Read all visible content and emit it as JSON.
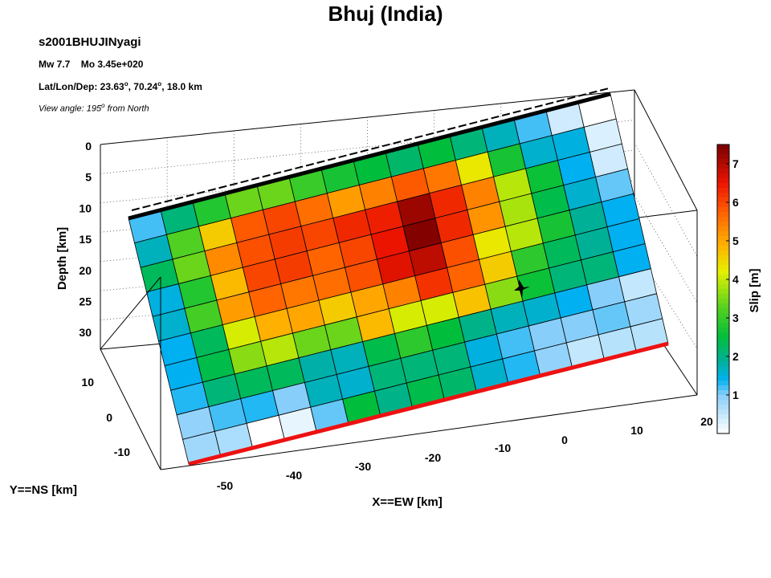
{
  "title": "Bhuj (India)",
  "event_id": "s2001BHUJINyagi",
  "mw_label": "Mw 7.7",
  "mo_label": "Mo 3.45e+020",
  "location": {
    "prefix": "Lat/Lon/Dep: ",
    "lat": "23.63",
    "lon": "70.24",
    "dep": "18.0 km",
    "deg": "o"
  },
  "view": {
    "prefix": "View angle: 195",
    "deg": "o",
    "suffix": " from North"
  },
  "chart_data": {
    "type": "heatmap",
    "title": "Bhuj (India)",
    "description_axes": {
      "depth_label": "Depth [km]",
      "x_label": "X==EW [km]",
      "y_label": "Y==NS [km]",
      "colorbar_label": "Slip [m]"
    },
    "depth_ticks": [
      "0",
      "5",
      "10",
      "15",
      "20",
      "25",
      "30"
    ],
    "x_ticks": [
      "-50",
      "-40",
      "-30",
      "-20",
      "-10",
      "0",
      "10",
      "20"
    ],
    "y_ticks": [
      "10",
      "0",
      "-10"
    ],
    "colorbar_ticks": [
      "1",
      "2",
      "3",
      "4",
      "5",
      "6",
      "7"
    ],
    "colorbar_range": [
      0,
      7.5
    ],
    "grid": true,
    "slip_m": [
      [
        1.2,
        2.1,
        2.8,
        3.4,
        3.4,
        3.0,
        2.7,
        2.5,
        2.2,
        2.5,
        2.1,
        1.7,
        1.2,
        0.4,
        0.0
      ],
      [
        1.7,
        3.2,
        4.6,
        5.8,
        6.0,
        5.6,
        5.1,
        5.4,
        5.8,
        5.5,
        4.3,
        2.7,
        1.6,
        1.5,
        0.3
      ],
      [
        2.3,
        3.4,
        5.3,
        5.9,
        6.1,
        6.0,
        6.3,
        6.4,
        7.2,
        6.3,
        5.4,
        3.9,
        2.6,
        1.4,
        0.4
      ],
      [
        1.5,
        2.8,
        4.8,
        6.0,
        6.1,
        5.7,
        6.0,
        6.5,
        7.4,
        6.3,
        5.2,
        3.8,
        2.4,
        1.6,
        1.1
      ],
      [
        1.6,
        3.1,
        5.1,
        5.7,
        5.5,
        5.6,
        5.9,
        6.6,
        6.9,
        5.9,
        4.3,
        3.9,
        2.7,
        1.9,
        1.4
      ],
      [
        1.4,
        2.3,
        4.1,
        4.9,
        5.0,
        4.6,
        5.0,
        5.4,
        6.2,
        5.7,
        4.6,
        2.9,
        2.3,
        1.9,
        1.4
      ],
      [
        1.4,
        2.4,
        3.6,
        3.9,
        3.4,
        3.4,
        4.8,
        4.1,
        4.1,
        4.7,
        3.6,
        2.6,
        2.1,
        2.1,
        1.4
      ],
      [
        1.3,
        2.1,
        2.3,
        2.3,
        1.8,
        1.7,
        2.4,
        2.9,
        2.5,
        2.0,
        1.7,
        1.6,
        1.4,
        1.0,
        0.5
      ],
      [
        0.9,
        1.2,
        1.3,
        1.0,
        1.7,
        1.6,
        2.1,
        2.1,
        2.1,
        1.5,
        1.2,
        1.0,
        1.0,
        1.1,
        0.8
      ],
      [
        0.8,
        0.7,
        0.0,
        0.2,
        1.1,
        2.5,
        2.0,
        2.4,
        2.2,
        1.6,
        1.3,
        0.9,
        0.5,
        0.6,
        0.6
      ]
    ],
    "hypocenter": "star-marker"
  }
}
